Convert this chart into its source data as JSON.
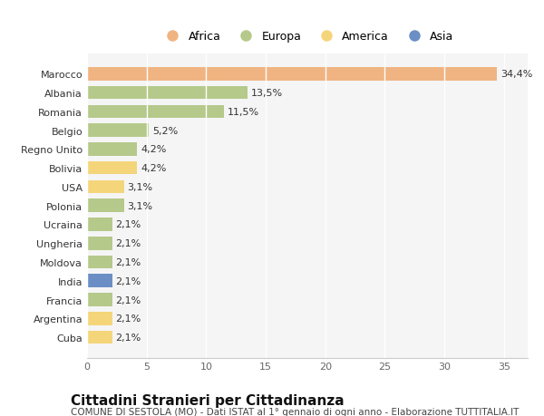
{
  "countries": [
    "Marocco",
    "Albania",
    "Romania",
    "Belgio",
    "Regno Unito",
    "Bolivia",
    "USA",
    "Polonia",
    "Ucraina",
    "Ungheria",
    "Moldova",
    "India",
    "Francia",
    "Argentina",
    "Cuba"
  ],
  "values": [
    34.4,
    13.5,
    11.5,
    5.2,
    4.2,
    4.2,
    3.1,
    3.1,
    2.1,
    2.1,
    2.1,
    2.1,
    2.1,
    2.1,
    2.1
  ],
  "labels": [
    "34,4%",
    "13,5%",
    "11,5%",
    "5,2%",
    "4,2%",
    "4,2%",
    "3,1%",
    "3,1%",
    "2,1%",
    "2,1%",
    "2,1%",
    "2,1%",
    "2,1%",
    "2,1%",
    "2,1%"
  ],
  "colors": [
    "#f0b482",
    "#b5c98a",
    "#b5c98a",
    "#b5c98a",
    "#b5c98a",
    "#f5d57a",
    "#f5d57a",
    "#b5c98a",
    "#b5c98a",
    "#b5c98a",
    "#b5c98a",
    "#6b8fc4",
    "#b5c98a",
    "#f5d57a",
    "#f5d57a"
  ],
  "legend": [
    {
      "label": "Africa",
      "color": "#f0b482"
    },
    {
      "label": "Europa",
      "color": "#b5c98a"
    },
    {
      "label": "America",
      "color": "#f5d57a"
    },
    {
      "label": "Asia",
      "color": "#6b8fc4"
    }
  ],
  "title": "Cittadini Stranieri per Cittadinanza",
  "subtitle": "COMUNE DI SESTOLA (MO) - Dati ISTAT al 1° gennaio di ogni anno - Elaborazione TUTTITALIA.IT",
  "xlim": [
    0,
    37
  ],
  "xticks": [
    0,
    5,
    10,
    15,
    20,
    25,
    30,
    35
  ],
  "bg_color": "#ffffff",
  "grid_color": "#ffffff",
  "bar_height": 0.7,
  "label_fontsize": 8,
  "tick_fontsize": 8,
  "title_fontsize": 11,
  "subtitle_fontsize": 7.5
}
